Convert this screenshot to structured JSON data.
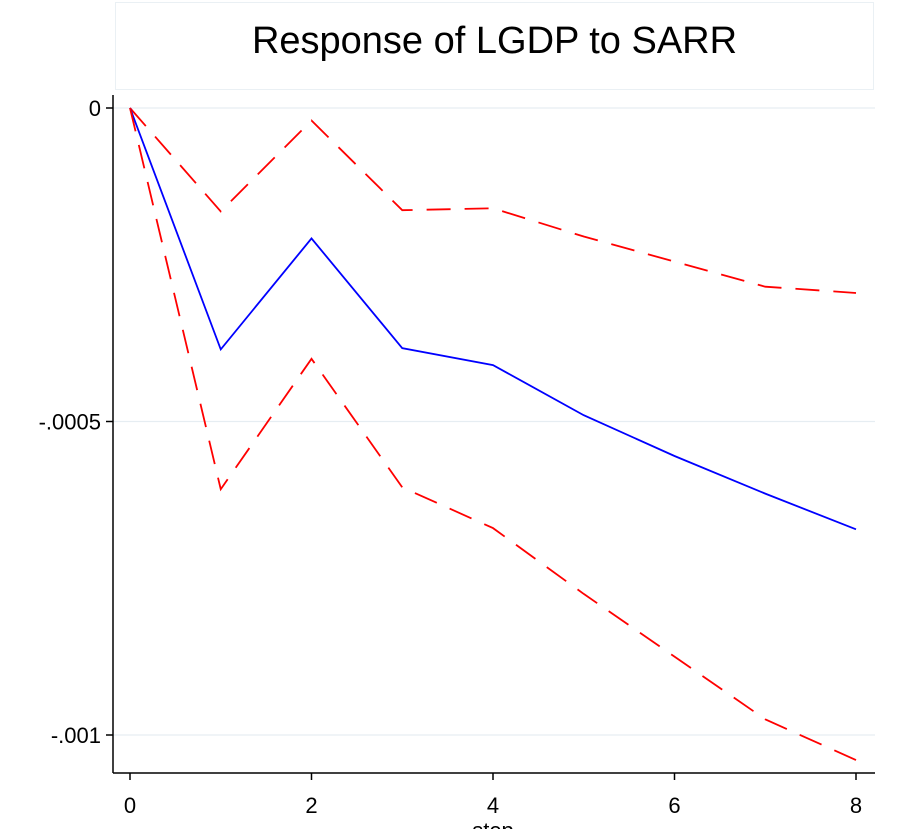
{
  "chart_data": {
    "type": "line",
    "title": "Response of LGDP to SARR",
    "xlabel": "step",
    "ylabel": "",
    "xlim": [
      0,
      8
    ],
    "ylim": [
      -0.00106,
      0
    ],
    "x_ticks": [
      0,
      2,
      4,
      6,
      8
    ],
    "x_tick_labels": [
      "0",
      "2",
      "4",
      "6",
      "8"
    ],
    "y_ticks": [
      0,
      -0.0005,
      -0.001
    ],
    "y_tick_labels": [
      "0",
      "-.0005",
      "-.001"
    ],
    "grid": "horizontal",
    "legend": "none",
    "x": [
      0,
      1,
      2,
      3,
      4,
      5,
      6,
      7,
      8
    ],
    "series": [
      {
        "values": [
          0,
          -0.000165,
          -2e-05,
          -0.000163,
          -0.00016,
          -0.000205,
          -0.000245,
          -0.000285,
          -0.000295
        ],
        "color": "#ff0000",
        "style": "dashed"
      },
      {
        "values": [
          0,
          -0.000385,
          -0.000208,
          -0.000383,
          -0.00041,
          -0.00049,
          -0.000555,
          -0.000615,
          -0.000672
        ],
        "color": "#0000ff",
        "style": "solid"
      },
      {
        "values": [
          0,
          -0.000608,
          -0.0004,
          -0.000605,
          -0.00067,
          -0.000775,
          -0.000875,
          -0.000975,
          -0.00104
        ],
        "color": "#ff0000",
        "style": "dashed"
      }
    ]
  }
}
